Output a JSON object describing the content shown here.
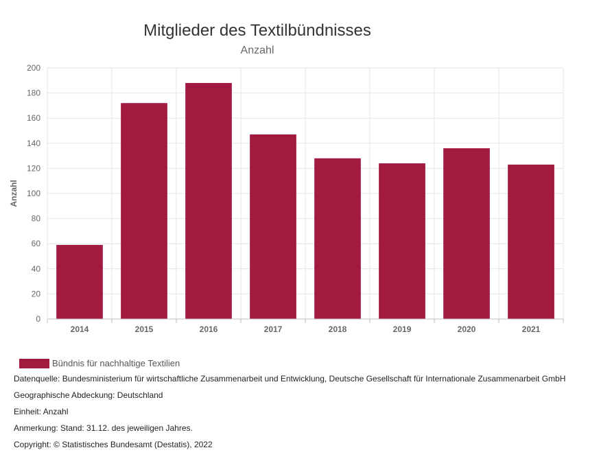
{
  "chart_data": {
    "type": "bar",
    "title": "Mitglieder des Textilbündnisses",
    "subtitle": "Anzahl",
    "xlabel": "",
    "ylabel": "Anzahl",
    "ylim": [
      0,
      200
    ],
    "yticks": [
      0,
      20,
      40,
      60,
      80,
      100,
      120,
      140,
      160,
      180,
      200
    ],
    "categories": [
      "2014",
      "2015",
      "2016",
      "2017",
      "2018",
      "2019",
      "2020",
      "2021"
    ],
    "series": [
      {
        "name": "Bündnis für nachhaltige Textilien",
        "color": "#A31A41",
        "values": [
          59,
          172,
          188,
          147,
          128,
          124,
          136,
          123
        ]
      }
    ],
    "grid": true,
    "legend_position": "bottom-left"
  },
  "footer": {
    "source": "Datenquelle: Bundesministerium für wirtschaftliche Zusammenarbeit und Entwicklung, Deutsche Gesellschaft für Internationale Zusammenarbeit GmbH",
    "coverage": "Geographische Abdeckung: Deutschland",
    "unit": "Einheit: Anzahl",
    "note": "Anmerkung: Stand: 31.12. des jeweiligen Jahres.",
    "copyright": "Copyright: © Statistisches Bundesamt (Destatis), 2022"
  }
}
